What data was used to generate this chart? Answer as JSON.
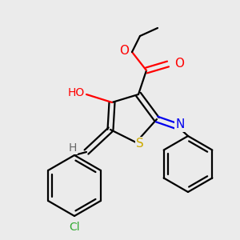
{
  "background_color": "#ebebeb",
  "bond_color": "#000000",
  "atom_colors": {
    "O": "#ff0000",
    "N": "#0000ee",
    "S": "#ccaa00",
    "Cl": "#33aa33",
    "H": "#666666",
    "C": "#000000"
  },
  "figsize": [
    3.0,
    3.0
  ],
  "dpi": 100
}
